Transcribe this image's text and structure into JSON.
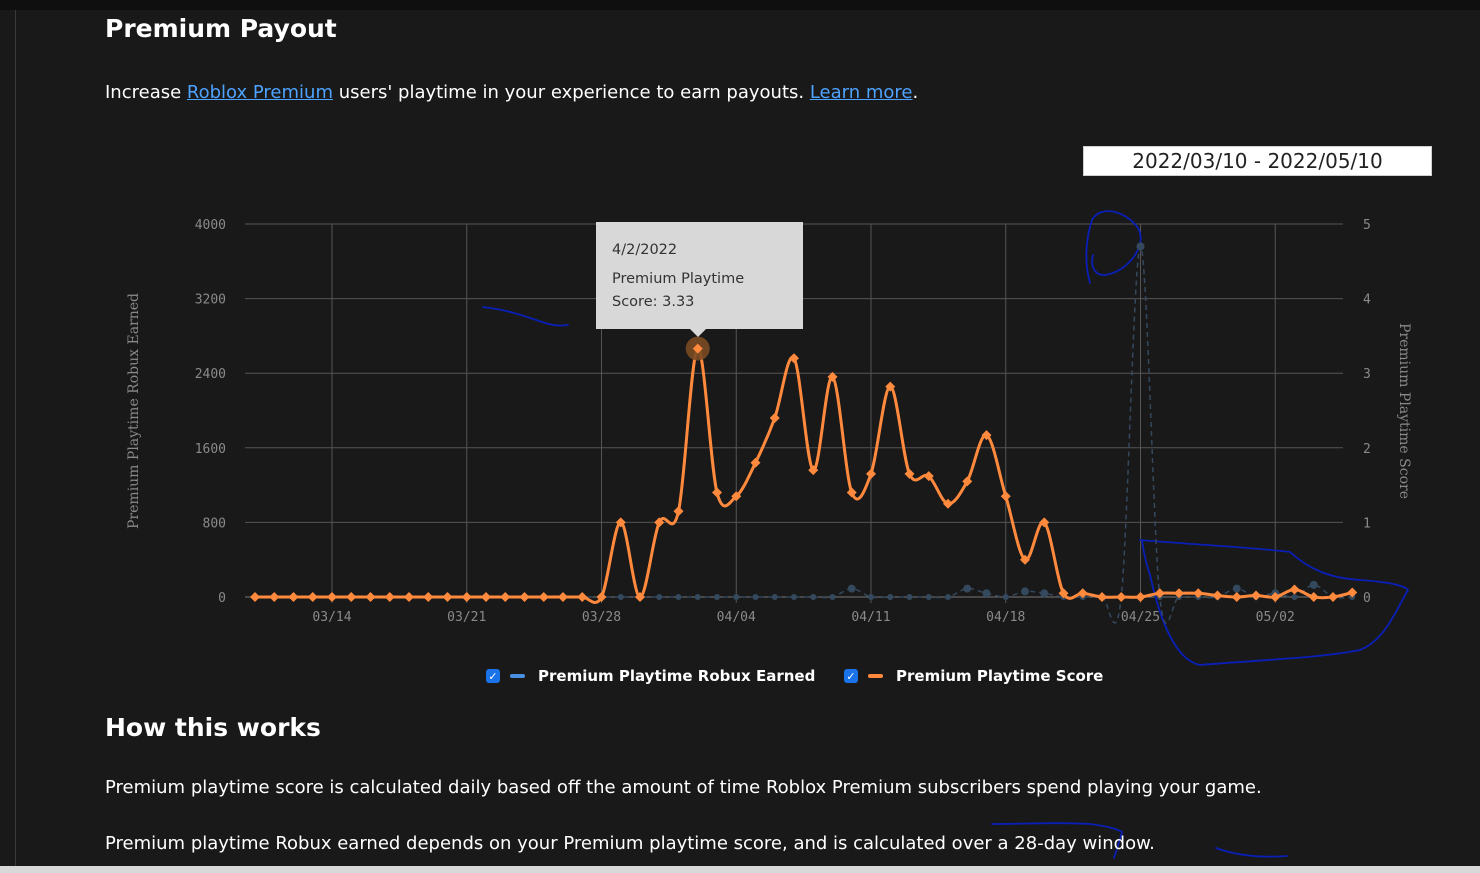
{
  "page": {
    "title": "Premium Payout",
    "intro_prefix": "Increase ",
    "intro_link1": "Roblox Premium",
    "intro_middle": " users' playtime in your experience to earn payouts. ",
    "intro_link2": "Learn more",
    "intro_suffix": ".",
    "date_range": "2022/03/10 - 2022/05/10",
    "how_title": "How this works",
    "para1": "Premium playtime score is calculated daily based off the amount of time Roblox Premium subscribers spend playing your game.",
    "para2": "Premium playtime Robux earned depends on your Premium playtime score, and is calculated over a 28-day window."
  },
  "legend": {
    "check": "✓",
    "robux_label": "Premium Playtime Robux Earned",
    "score_label": "Premium Playtime Score"
  },
  "tooltip": {
    "date": "4/2/2022",
    "label": "Premium Playtime",
    "value": "Score: 3.33"
  },
  "colors": {
    "score": "#ff8a3d",
    "robux": "#4a90e2",
    "robux_marker": "#34495e",
    "grid": "#555555",
    "axis_text": "#8a8a8a",
    "annotation": "#0a1fb5"
  },
  "chart_data": {
    "type": "line",
    "xlabel": "",
    "ylabel": "Premium Playtime Robux Earned",
    "y2label": "Premium Playtime Score",
    "x_range": [
      "2022-03-10",
      "2022-05-06"
    ],
    "x_ticks": [
      "03/14",
      "03/21",
      "03/28",
      "04/04",
      "04/11",
      "04/18",
      "04/25",
      "05/02"
    ],
    "ylim": [
      0,
      4000
    ],
    "y_ticks": [
      "0",
      "800",
      "1600",
      "2400",
      "3200",
      "4000"
    ],
    "y2lim": [
      0,
      5
    ],
    "y2_ticks": [
      "0",
      "1",
      "2",
      "3",
      "4",
      "5"
    ],
    "grid": true,
    "legend_position": "bottom",
    "series": [
      {
        "name": "Premium Playtime Robux Earned",
        "axis": "left",
        "style": "dashed",
        "points": [
          [
            "2022-03-10",
            0
          ],
          [
            "2022-03-11",
            0
          ],
          [
            "2022-03-12",
            0
          ],
          [
            "2022-03-13",
            0
          ],
          [
            "2022-03-14",
            0
          ],
          [
            "2022-03-15",
            0
          ],
          [
            "2022-03-16",
            0
          ],
          [
            "2022-03-17",
            0
          ],
          [
            "2022-03-18",
            0
          ],
          [
            "2022-03-19",
            0
          ],
          [
            "2022-03-20",
            0
          ],
          [
            "2022-03-21",
            0
          ],
          [
            "2022-03-22",
            0
          ],
          [
            "2022-03-23",
            0
          ],
          [
            "2022-03-24",
            0
          ],
          [
            "2022-03-25",
            0
          ],
          [
            "2022-03-26",
            0
          ],
          [
            "2022-03-27",
            0
          ],
          [
            "2022-03-28",
            0
          ],
          [
            "2022-03-29",
            0
          ],
          [
            "2022-03-30",
            0
          ],
          [
            "2022-03-31",
            0
          ],
          [
            "2022-04-01",
            0
          ],
          [
            "2022-04-02",
            0
          ],
          [
            "2022-04-03",
            0
          ],
          [
            "2022-04-04",
            0
          ],
          [
            "2022-04-05",
            0
          ],
          [
            "2022-04-06",
            0
          ],
          [
            "2022-04-07",
            0
          ],
          [
            "2022-04-08",
            0
          ],
          [
            "2022-04-09",
            0
          ],
          [
            "2022-04-10",
            90
          ],
          [
            "2022-04-11",
            0
          ],
          [
            "2022-04-12",
            0
          ],
          [
            "2022-04-13",
            0
          ],
          [
            "2022-04-14",
            0
          ],
          [
            "2022-04-15",
            0
          ],
          [
            "2022-04-16",
            90
          ],
          [
            "2022-04-17",
            40
          ],
          [
            "2022-04-18",
            0
          ],
          [
            "2022-04-19",
            60
          ],
          [
            "2022-04-20",
            40
          ],
          [
            "2022-04-21",
            0
          ],
          [
            "2022-04-22",
            0
          ],
          [
            "2022-04-23",
            0
          ],
          [
            "2022-04-24",
            0
          ],
          [
            "2022-04-25",
            3760
          ],
          [
            "2022-04-26",
            0
          ],
          [
            "2022-04-27",
            0
          ],
          [
            "2022-04-28",
            0
          ],
          [
            "2022-04-29",
            0
          ],
          [
            "2022-04-30",
            90
          ],
          [
            "2022-05-01",
            0
          ],
          [
            "2022-05-02",
            40
          ],
          [
            "2022-05-03",
            0
          ],
          [
            "2022-05-04",
            130
          ],
          [
            "2022-05-05",
            0
          ],
          [
            "2022-05-06",
            0
          ]
        ]
      },
      {
        "name": "Premium Playtime Score",
        "axis": "right",
        "style": "solid",
        "points": [
          [
            "2022-03-10",
            0
          ],
          [
            "2022-03-11",
            0
          ],
          [
            "2022-03-12",
            0
          ],
          [
            "2022-03-13",
            0
          ],
          [
            "2022-03-14",
            0
          ],
          [
            "2022-03-15",
            0
          ],
          [
            "2022-03-16",
            0
          ],
          [
            "2022-03-17",
            0
          ],
          [
            "2022-03-18",
            0
          ],
          [
            "2022-03-19",
            0
          ],
          [
            "2022-03-20",
            0
          ],
          [
            "2022-03-21",
            0
          ],
          [
            "2022-03-22",
            0
          ],
          [
            "2022-03-23",
            0
          ],
          [
            "2022-03-24",
            0
          ],
          [
            "2022-03-25",
            0
          ],
          [
            "2022-03-26",
            0
          ],
          [
            "2022-03-27",
            0
          ],
          [
            "2022-03-28",
            0
          ],
          [
            "2022-03-29",
            1.0
          ],
          [
            "2022-03-30",
            0
          ],
          [
            "2022-03-31",
            1.0
          ],
          [
            "2022-04-01",
            1.15
          ],
          [
            "2022-04-02",
            3.33
          ],
          [
            "2022-04-03",
            1.4
          ],
          [
            "2022-04-04",
            1.35
          ],
          [
            "2022-04-05",
            1.8
          ],
          [
            "2022-04-06",
            2.4
          ],
          [
            "2022-04-07",
            3.2
          ],
          [
            "2022-04-08",
            1.7
          ],
          [
            "2022-04-09",
            2.95
          ],
          [
            "2022-04-10",
            1.4
          ],
          [
            "2022-04-11",
            1.65
          ],
          [
            "2022-04-12",
            2.82
          ],
          [
            "2022-04-13",
            1.65
          ],
          [
            "2022-04-14",
            1.62
          ],
          [
            "2022-04-15",
            1.25
          ],
          [
            "2022-04-16",
            1.55
          ],
          [
            "2022-04-17",
            2.17
          ],
          [
            "2022-04-18",
            1.35
          ],
          [
            "2022-04-19",
            0.5
          ],
          [
            "2022-04-20",
            1.0
          ],
          [
            "2022-04-21",
            0.05
          ],
          [
            "2022-04-22",
            0.05
          ],
          [
            "2022-04-23",
            0
          ],
          [
            "2022-04-24",
            0
          ],
          [
            "2022-04-25",
            0
          ],
          [
            "2022-04-26",
            0.05
          ],
          [
            "2022-04-27",
            0.05
          ],
          [
            "2022-04-28",
            0.05
          ],
          [
            "2022-04-29",
            0.02
          ],
          [
            "2022-04-30",
            0
          ],
          [
            "2022-05-01",
            0.02
          ],
          [
            "2022-05-02",
            0
          ],
          [
            "2022-05-03",
            0.1
          ],
          [
            "2022-05-04",
            0
          ],
          [
            "2022-05-05",
            0
          ],
          [
            "2022-05-06",
            0.06
          ]
        ]
      }
    ],
    "highlight": {
      "series": "Premium Playtime Score",
      "date": "2022-04-02"
    }
  }
}
